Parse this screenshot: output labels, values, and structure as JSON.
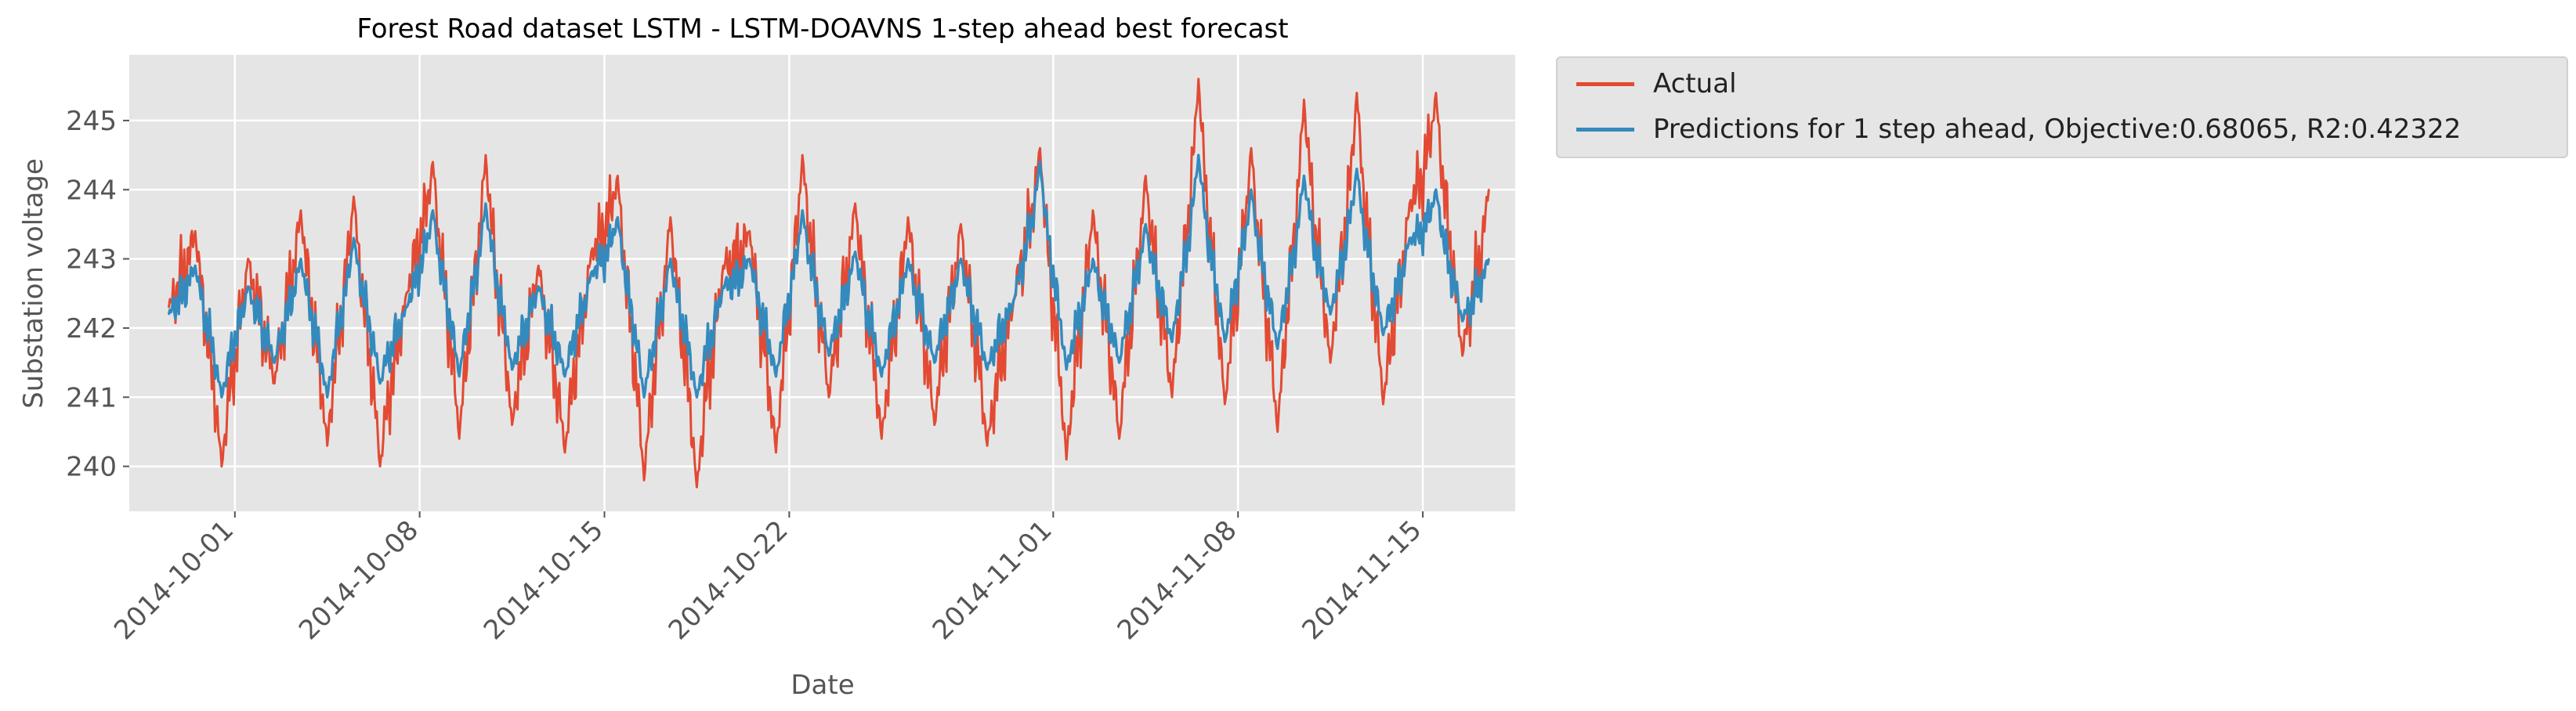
{
  "chart_data": {
    "type": "line",
    "title": "Forest Road dataset LSTM - LSTM-DOAVNS 1-step ahead best forecast",
    "xlabel": "Date",
    "ylabel": "Substation  voltage",
    "x_range": [
      "2014-09-27T00:00",
      "2014-11-18T12:00"
    ],
    "ylim": [
      239.35,
      245.95
    ],
    "x_ticks": [
      "2014-10-01",
      "2014-10-08",
      "2014-10-15",
      "2014-10-22",
      "2014-11-01",
      "2014-11-08",
      "2014-11-15"
    ],
    "y_ticks": [
      240,
      241,
      242,
      243,
      244,
      245
    ],
    "grid": true,
    "legend_position": "outside-top-right",
    "series": [
      {
        "name": "Actual",
        "color": "#E24A33",
        "x": [
          "2014-09-28T12:00",
          "2014-09-29T12:00",
          "2014-09-30T12:00",
          "2014-10-01T12:00",
          "2014-10-02T12:00",
          "2014-10-03T12:00",
          "2014-10-04T12:00",
          "2014-10-05T12:00",
          "2014-10-06T12:00",
          "2014-10-07T12:00",
          "2014-10-08T12:00",
          "2014-10-09T12:00",
          "2014-10-10T12:00",
          "2014-10-11T12:00",
          "2014-10-12T12:00",
          "2014-10-13T12:00",
          "2014-10-14T12:00",
          "2014-10-15T12:00",
          "2014-10-16T12:00",
          "2014-10-17T12:00",
          "2014-10-18T12:00",
          "2014-10-19T12:00",
          "2014-10-20T12:00",
          "2014-10-21T12:00",
          "2014-10-22T12:00",
          "2014-10-23T12:00",
          "2014-10-24T12:00",
          "2014-10-25T12:00",
          "2014-10-26T12:00",
          "2014-10-27T12:00",
          "2014-10-28T12:00",
          "2014-10-29T12:00",
          "2014-10-30T12:00",
          "2014-10-31T12:00",
          "2014-11-01T12:00",
          "2014-11-02T12:00",
          "2014-11-03T12:00",
          "2014-11-04T12:00",
          "2014-11-05T12:00",
          "2014-11-06T12:00",
          "2014-11-07T12:00",
          "2014-11-08T12:00",
          "2014-11-09T12:00",
          "2014-11-10T12:00",
          "2014-11-11T12:00",
          "2014-11-12T12:00",
          "2014-11-13T12:00",
          "2014-11-14T12:00",
          "2014-11-15T12:00",
          "2014-11-16T12:00",
          "2014-11-17T12:00"
        ],
        "values": [
          242.3,
          243.4,
          240.0,
          243.0,
          241.2,
          243.7,
          240.3,
          243.9,
          240.0,
          242.5,
          244.4,
          240.4,
          244.5,
          240.6,
          242.9,
          240.2,
          243.1,
          244.2,
          239.8,
          243.6,
          239.7,
          242.9,
          243.4,
          240.2,
          244.5,
          241.0,
          243.8,
          240.4,
          243.6,
          240.6,
          243.5,
          240.3,
          242.4,
          244.6,
          240.1,
          243.7,
          240.4,
          244.2,
          241.0,
          245.6,
          240.9,
          244.6,
          240.5,
          245.3,
          241.5,
          245.4,
          240.9,
          243.8,
          245.4,
          241.6,
          244.0
        ]
      },
      {
        "name": "Predictions for 1 step ahead, Objective:0.68065, R2:0.42322",
        "color": "#348ABD",
        "x": [
          "2014-09-28T12:00",
          "2014-09-29T12:00",
          "2014-09-30T12:00",
          "2014-10-01T12:00",
          "2014-10-02T12:00",
          "2014-10-03T12:00",
          "2014-10-04T12:00",
          "2014-10-05T12:00",
          "2014-10-06T12:00",
          "2014-10-07T12:00",
          "2014-10-08T12:00",
          "2014-10-09T12:00",
          "2014-10-10T12:00",
          "2014-10-11T12:00",
          "2014-10-12T12:00",
          "2014-10-13T12:00",
          "2014-10-14T12:00",
          "2014-10-15T12:00",
          "2014-10-16T12:00",
          "2014-10-17T12:00",
          "2014-10-18T12:00",
          "2014-10-19T12:00",
          "2014-10-20T12:00",
          "2014-10-21T12:00",
          "2014-10-22T12:00",
          "2014-10-23T12:00",
          "2014-10-24T12:00",
          "2014-10-25T12:00",
          "2014-10-26T12:00",
          "2014-10-27T12:00",
          "2014-10-28T12:00",
          "2014-10-29T12:00",
          "2014-10-30T12:00",
          "2014-10-31T12:00",
          "2014-11-01T12:00",
          "2014-11-02T12:00",
          "2014-11-03T12:00",
          "2014-11-04T12:00",
          "2014-11-05T12:00",
          "2014-11-06T12:00",
          "2014-11-07T12:00",
          "2014-11-08T12:00",
          "2014-11-09T12:00",
          "2014-11-10T12:00",
          "2014-11-11T12:00",
          "2014-11-12T12:00",
          "2014-11-13T12:00",
          "2014-11-14T12:00",
          "2014-11-15T12:00",
          "2014-11-16T12:00",
          "2014-11-17T12:00"
        ],
        "values": [
          242.2,
          242.9,
          241.0,
          242.6,
          241.5,
          243.0,
          241.0,
          243.3,
          241.2,
          242.3,
          243.7,
          241.3,
          243.8,
          241.4,
          242.6,
          241.3,
          242.8,
          243.6,
          241.0,
          243.0,
          241.0,
          242.6,
          243.0,
          241.3,
          243.7,
          241.6,
          243.1,
          241.3,
          243.0,
          241.5,
          243.0,
          241.4,
          242.4,
          244.4,
          241.4,
          243.0,
          241.5,
          243.5,
          241.8,
          244.5,
          241.8,
          244.0,
          241.7,
          244.2,
          242.2,
          244.3,
          241.9,
          243.3,
          244.0,
          242.1,
          243.0
        ]
      }
    ]
  }
}
